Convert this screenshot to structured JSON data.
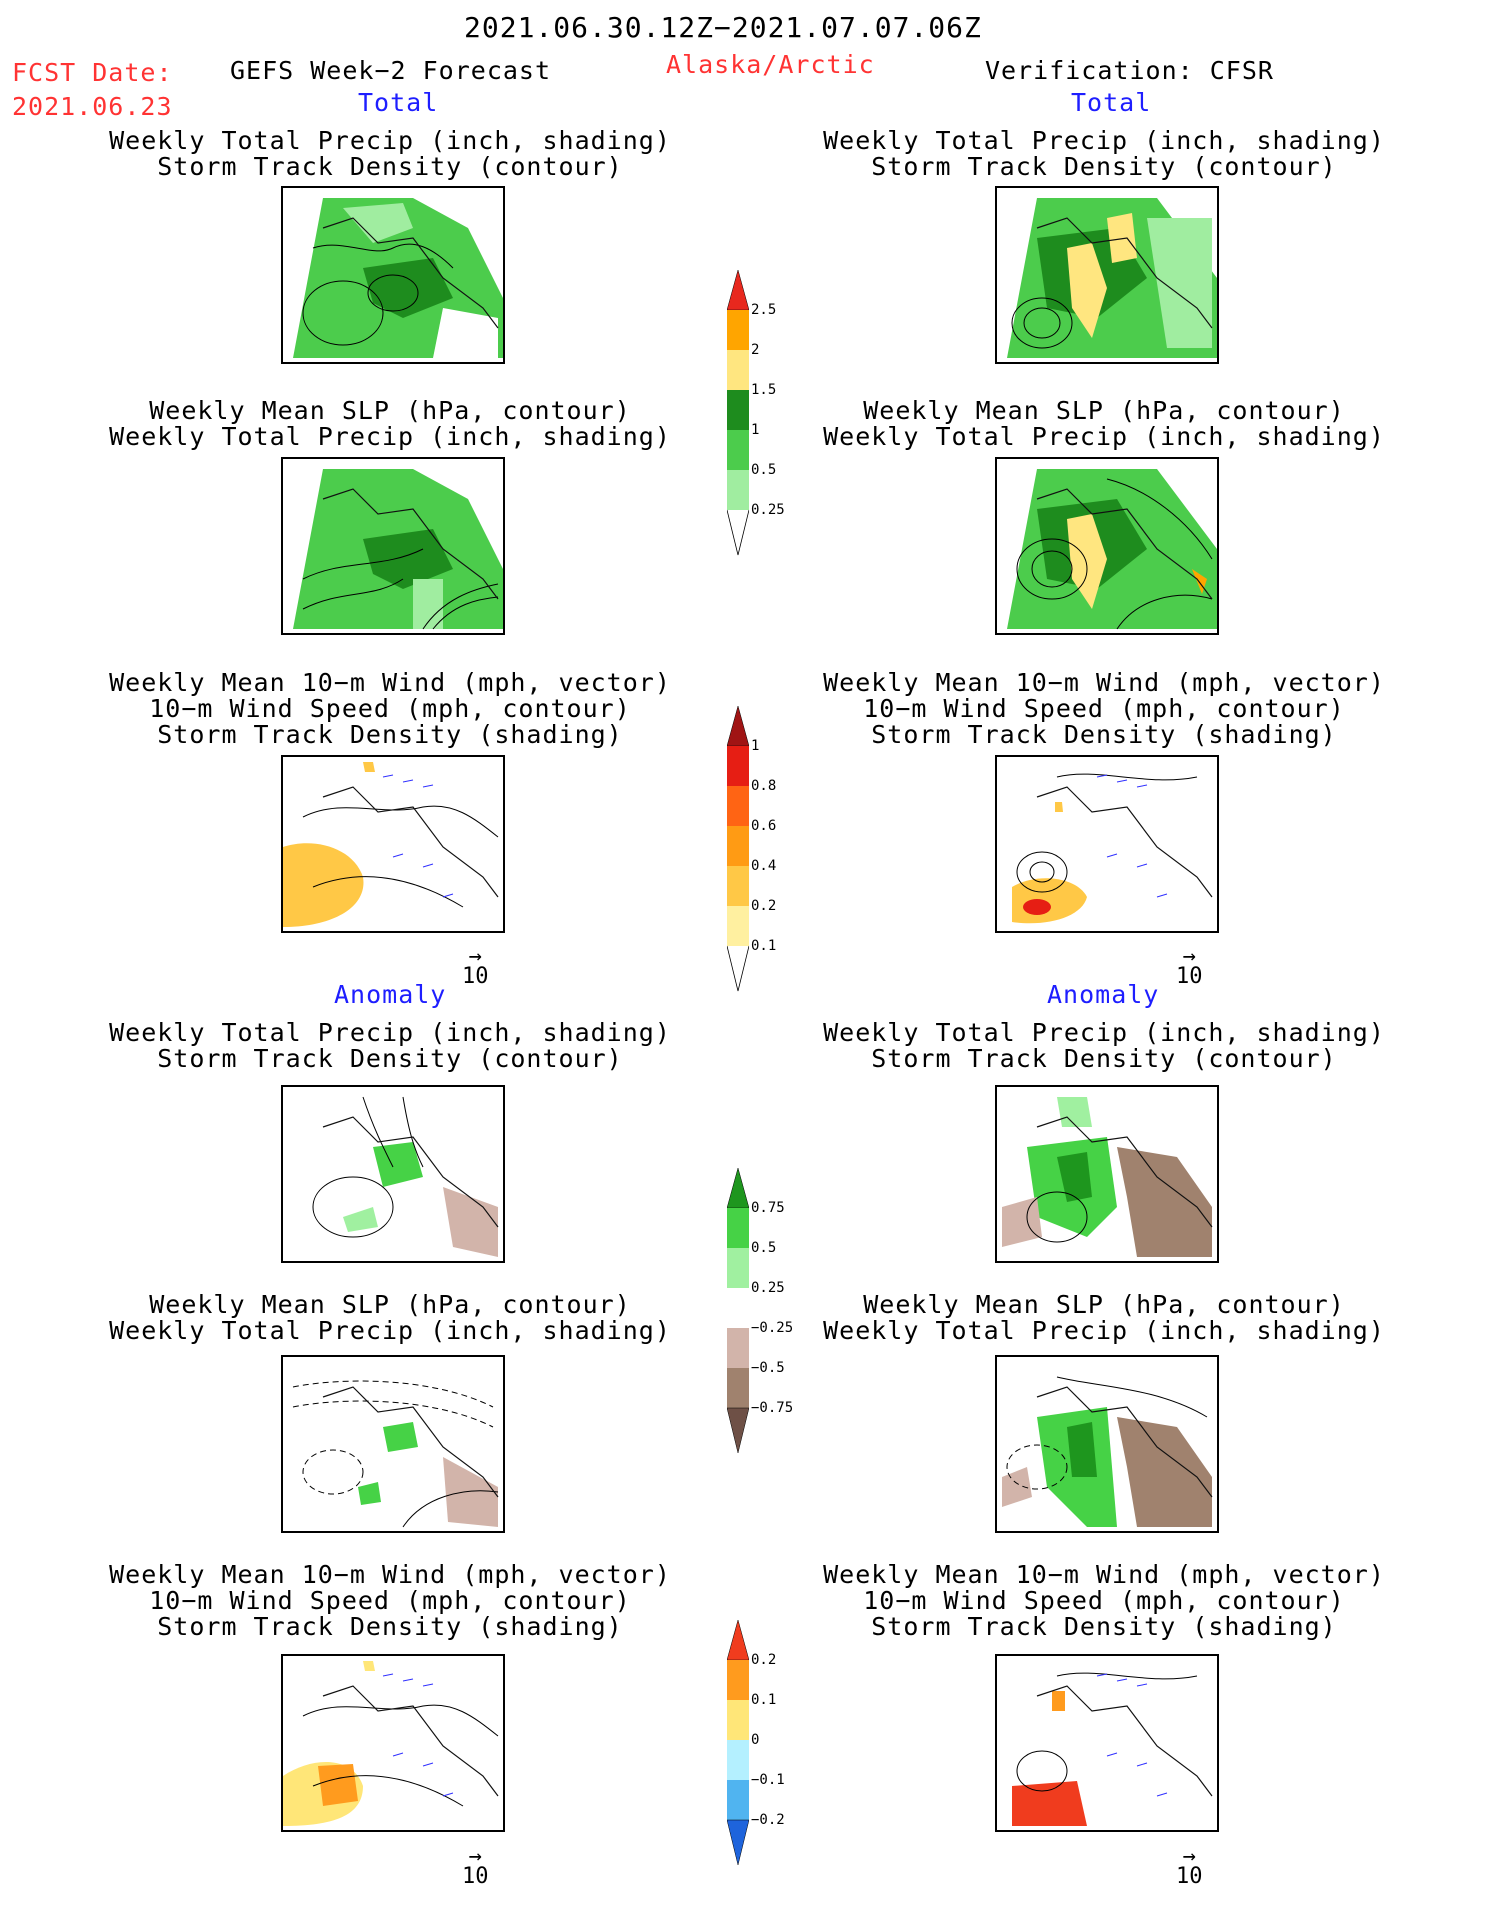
{
  "header": {
    "date_range": "2021.06.30.12Z−2021.07.07.06Z",
    "fcst_label": "FCST Date:",
    "fcst_date": "2021.06.23",
    "forecast_title": "GEFS Week−2 Forecast",
    "region": "Alaska/Arctic",
    "verification": "Verification: CFSR"
  },
  "sections": {
    "total": "Total",
    "anomaly": "Anomaly"
  },
  "panel_titles": {
    "precip_track": [
      "Weekly Total Precip (inch, shading)",
      "Storm Track Density (contour)"
    ],
    "slp_precip": [
      "Weekly Mean SLP (hPa, contour)",
      "Weekly Total Precip (inch, shading)"
    ],
    "wind": [
      "Weekly Mean 10−m Wind (mph, vector)",
      "10−m Wind Speed (mph, contour)",
      "Storm Track Density (shading)"
    ]
  },
  "vector_reference": "10",
  "colorbars": {
    "precip_total": {
      "labels": [
        "2.5",
        "2",
        "1.5",
        "1",
        "0.5",
        "0.25"
      ],
      "colors": [
        "#e8281e",
        "#ffa500",
        "#ffe680",
        "#1e8c1e",
        "#4ccc4c",
        "#a0eda0"
      ]
    },
    "track_total": {
      "labels": [
        "1",
        "0.8",
        "0.6",
        "0.4",
        "0.2",
        "0.1"
      ],
      "colors": [
        "#a01414",
        "#e61e14",
        "#ff6414",
        "#ff9b14",
        "#ffc846",
        "#fff0a0"
      ]
    },
    "precip_anom": {
      "labels": [
        "0.75",
        "0.5",
        "0.25",
        "−0.25",
        "−0.5",
        "−0.75"
      ],
      "colors_top": [
        "#1e961e",
        "#46d246",
        "#a0f0a0"
      ],
      "colors_bottom": [
        "#d2b4aa",
        "#a0826e",
        "#6e5046"
      ]
    },
    "track_anom": {
      "labels": [
        "0.2",
        "0.1",
        "0",
        "−0.1",
        "−0.2"
      ],
      "colors_top": [
        "#f03c1e",
        "#ff9b1e",
        "#ffe678"
      ],
      "colors_bottom": [
        "#b4f0ff",
        "#50b4f0",
        "#1e64dc"
      ]
    }
  }
}
